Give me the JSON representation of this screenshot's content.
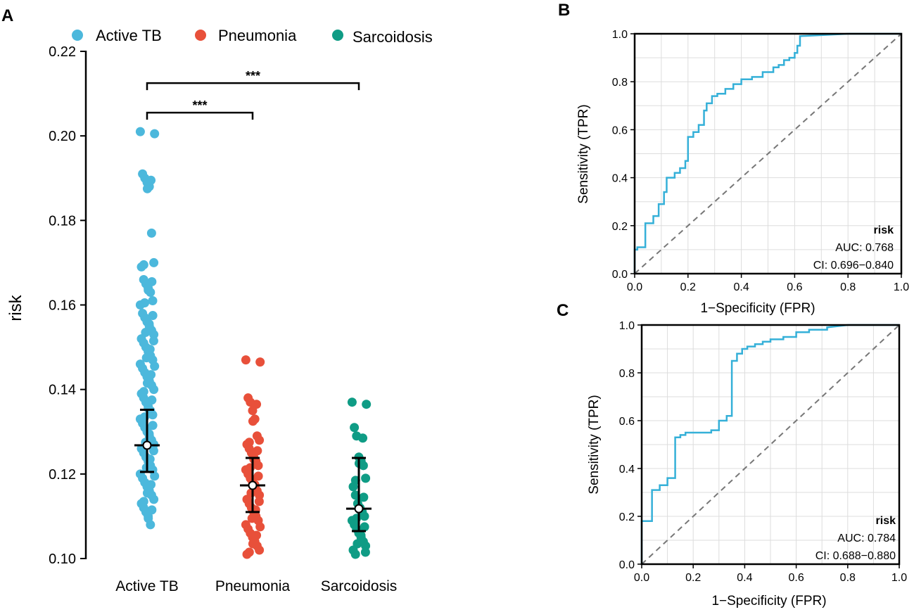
{
  "panels": {
    "a": "A",
    "b": "B",
    "c": "C"
  },
  "colors": {
    "active_tb": "#4cb8dc",
    "pneumonia": "#e8503a",
    "sarcoidosis": "#0f9c85",
    "roc": "#35b0d8",
    "grid": "#dddddd",
    "diag": "#777777",
    "axis": "#000000"
  },
  "chart_data": [
    {
      "id": "A",
      "type": "scatter",
      "title": "",
      "xlabel": "",
      "ylabel": "risk",
      "ylim": [
        0.1,
        0.22
      ],
      "yticks": [
        "0.10",
        "0.12",
        "0.14",
        "0.16",
        "0.18",
        "0.20",
        "0.22"
      ],
      "categories": [
        "Active TB",
        "Pneumonia",
        "Sarcoidosis"
      ],
      "legend": {
        "position": "top",
        "entries": [
          "Active TB",
          "Pneumonia",
          "Sarcoidosis"
        ]
      },
      "series": [
        {
          "name": "Active TB",
          "median": 0.1268,
          "q1": 0.1205,
          "q3": 0.1352,
          "values": [
            0.201,
            0.191,
            0.19,
            0.189,
            0.188,
            0.177,
            0.17,
            0.169,
            0.166,
            0.165,
            0.164,
            0.163,
            0.161,
            0.16,
            0.158,
            0.157,
            0.156,
            0.155,
            0.154,
            0.153,
            0.152,
            0.151,
            0.15,
            0.149,
            0.148,
            0.147,
            0.146,
            0.145,
            0.144,
            0.143,
            0.142,
            0.141,
            0.14,
            0.139,
            0.138,
            0.137,
            0.136,
            0.135,
            0.134,
            0.133,
            0.132,
            0.131,
            0.13,
            0.129,
            0.128,
            0.127,
            0.126,
            0.125,
            0.124,
            0.123,
            0.122,
            0.121,
            0.12,
            0.119,
            0.118,
            0.117,
            0.116,
            0.115,
            0.114,
            0.113,
            0.112,
            0.111,
            0.11,
            0.108
          ]
        },
        {
          "name": "Pneumonia",
          "median": 0.1173,
          "q1": 0.111,
          "q3": 0.1238,
          "values": [
            0.147,
            0.138,
            0.137,
            0.135,
            0.133,
            0.129,
            0.128,
            0.127,
            0.126,
            0.125,
            0.124,
            0.123,
            0.122,
            0.121,
            0.12,
            0.119,
            0.118,
            0.117,
            0.116,
            0.115,
            0.114,
            0.113,
            0.112,
            0.111,
            0.11,
            0.109,
            0.108,
            0.107,
            0.106,
            0.105,
            0.104,
            0.103,
            0.102,
            0.101
          ]
        },
        {
          "name": "Sarcoidosis",
          "median": 0.1118,
          "q1": 0.1065,
          "q3": 0.1238,
          "values": [
            0.137,
            0.131,
            0.129,
            0.124,
            0.123,
            0.122,
            0.119,
            0.117,
            0.115,
            0.113,
            0.112,
            0.111,
            0.11,
            0.109,
            0.108,
            0.107,
            0.106,
            0.105,
            0.104,
            0.103,
            0.102,
            0.101
          ]
        }
      ],
      "annotations": [
        {
          "from": "Active TB",
          "to": "Pneumonia",
          "label": "***",
          "y": 0.2055
        },
        {
          "from": "Active TB",
          "to": "Sarcoidosis",
          "label": "***",
          "y": 0.2125
        }
      ]
    },
    {
      "id": "B",
      "type": "line",
      "xlabel": "1−Specificity (FPR)",
      "ylabel": "Sensitivity (TPR)",
      "xlim": [
        0,
        1
      ],
      "ylim": [
        0,
        1
      ],
      "ticks": [
        "0.0",
        "0.2",
        "0.4",
        "0.6",
        "0.8",
        "1.0"
      ],
      "grid": true,
      "legend_title": "risk",
      "auc_text": "AUC: 0.768",
      "ci_text": "CI: 0.696−0.840",
      "x": [
        0,
        0,
        0.01,
        0.01,
        0.04,
        0.04,
        0.07,
        0.07,
        0.09,
        0.09,
        0.11,
        0.11,
        0.12,
        0.12,
        0.15,
        0.15,
        0.17,
        0.17,
        0.19,
        0.19,
        0.2,
        0.2,
        0.22,
        0.22,
        0.24,
        0.24,
        0.26,
        0.26,
        0.27,
        0.27,
        0.29,
        0.29,
        0.31,
        0.31,
        0.34,
        0.34,
        0.37,
        0.37,
        0.4,
        0.4,
        0.44,
        0.44,
        0.48,
        0.48,
        0.52,
        0.52,
        0.54,
        0.54,
        0.56,
        0.56,
        0.58,
        0.58,
        0.6,
        0.6,
        0.61,
        0.61,
        0.62,
        0.62,
        0.8,
        1.0
      ],
      "y": [
        0,
        0.1,
        0.1,
        0.11,
        0.11,
        0.21,
        0.21,
        0.24,
        0.24,
        0.29,
        0.29,
        0.34,
        0.34,
        0.4,
        0.4,
        0.42,
        0.42,
        0.44,
        0.44,
        0.47,
        0.47,
        0.57,
        0.57,
        0.59,
        0.59,
        0.62,
        0.62,
        0.68,
        0.68,
        0.71,
        0.71,
        0.74,
        0.74,
        0.75,
        0.75,
        0.77,
        0.77,
        0.79,
        0.79,
        0.81,
        0.81,
        0.82,
        0.82,
        0.84,
        0.84,
        0.86,
        0.86,
        0.87,
        0.87,
        0.89,
        0.89,
        0.9,
        0.9,
        0.92,
        0.92,
        0.95,
        0.95,
        0.99,
        1.0,
        1.0
      ]
    },
    {
      "id": "C",
      "type": "line",
      "xlabel": "1−Specificity (FPR)",
      "ylabel": "Sensitivity (TPR)",
      "xlim": [
        0,
        1
      ],
      "ylim": [
        0,
        1
      ],
      "ticks": [
        "0.0",
        "0.2",
        "0.4",
        "0.6",
        "0.8",
        "1.0"
      ],
      "grid": true,
      "legend_title": "risk",
      "auc_text": "AUC: 0.784",
      "ci_text": "CI: 0.688−0.880",
      "x": [
        0,
        0,
        0.01,
        0.01,
        0.04,
        0.04,
        0.07,
        0.07,
        0.1,
        0.1,
        0.13,
        0.13,
        0.15,
        0.15,
        0.17,
        0.17,
        0.23,
        0.23,
        0.27,
        0.27,
        0.3,
        0.3,
        0.33,
        0.33,
        0.35,
        0.35,
        0.37,
        0.37,
        0.39,
        0.39,
        0.41,
        0.41,
        0.44,
        0.44,
        0.47,
        0.47,
        0.5,
        0.5,
        0.55,
        0.55,
        0.6,
        0.6,
        0.65,
        0.65,
        0.72,
        0.72,
        0.8,
        1.0
      ],
      "y": [
        0,
        0.18,
        0.18,
        0.18,
        0.18,
        0.31,
        0.31,
        0.33,
        0.33,
        0.36,
        0.36,
        0.53,
        0.53,
        0.54,
        0.54,
        0.55,
        0.55,
        0.55,
        0.55,
        0.56,
        0.56,
        0.6,
        0.6,
        0.62,
        0.62,
        0.85,
        0.85,
        0.88,
        0.88,
        0.9,
        0.9,
        0.91,
        0.91,
        0.92,
        0.92,
        0.93,
        0.93,
        0.94,
        0.94,
        0.95,
        0.95,
        0.97,
        0.97,
        0.98,
        0.98,
        0.99,
        1.0,
        1.0
      ]
    }
  ]
}
